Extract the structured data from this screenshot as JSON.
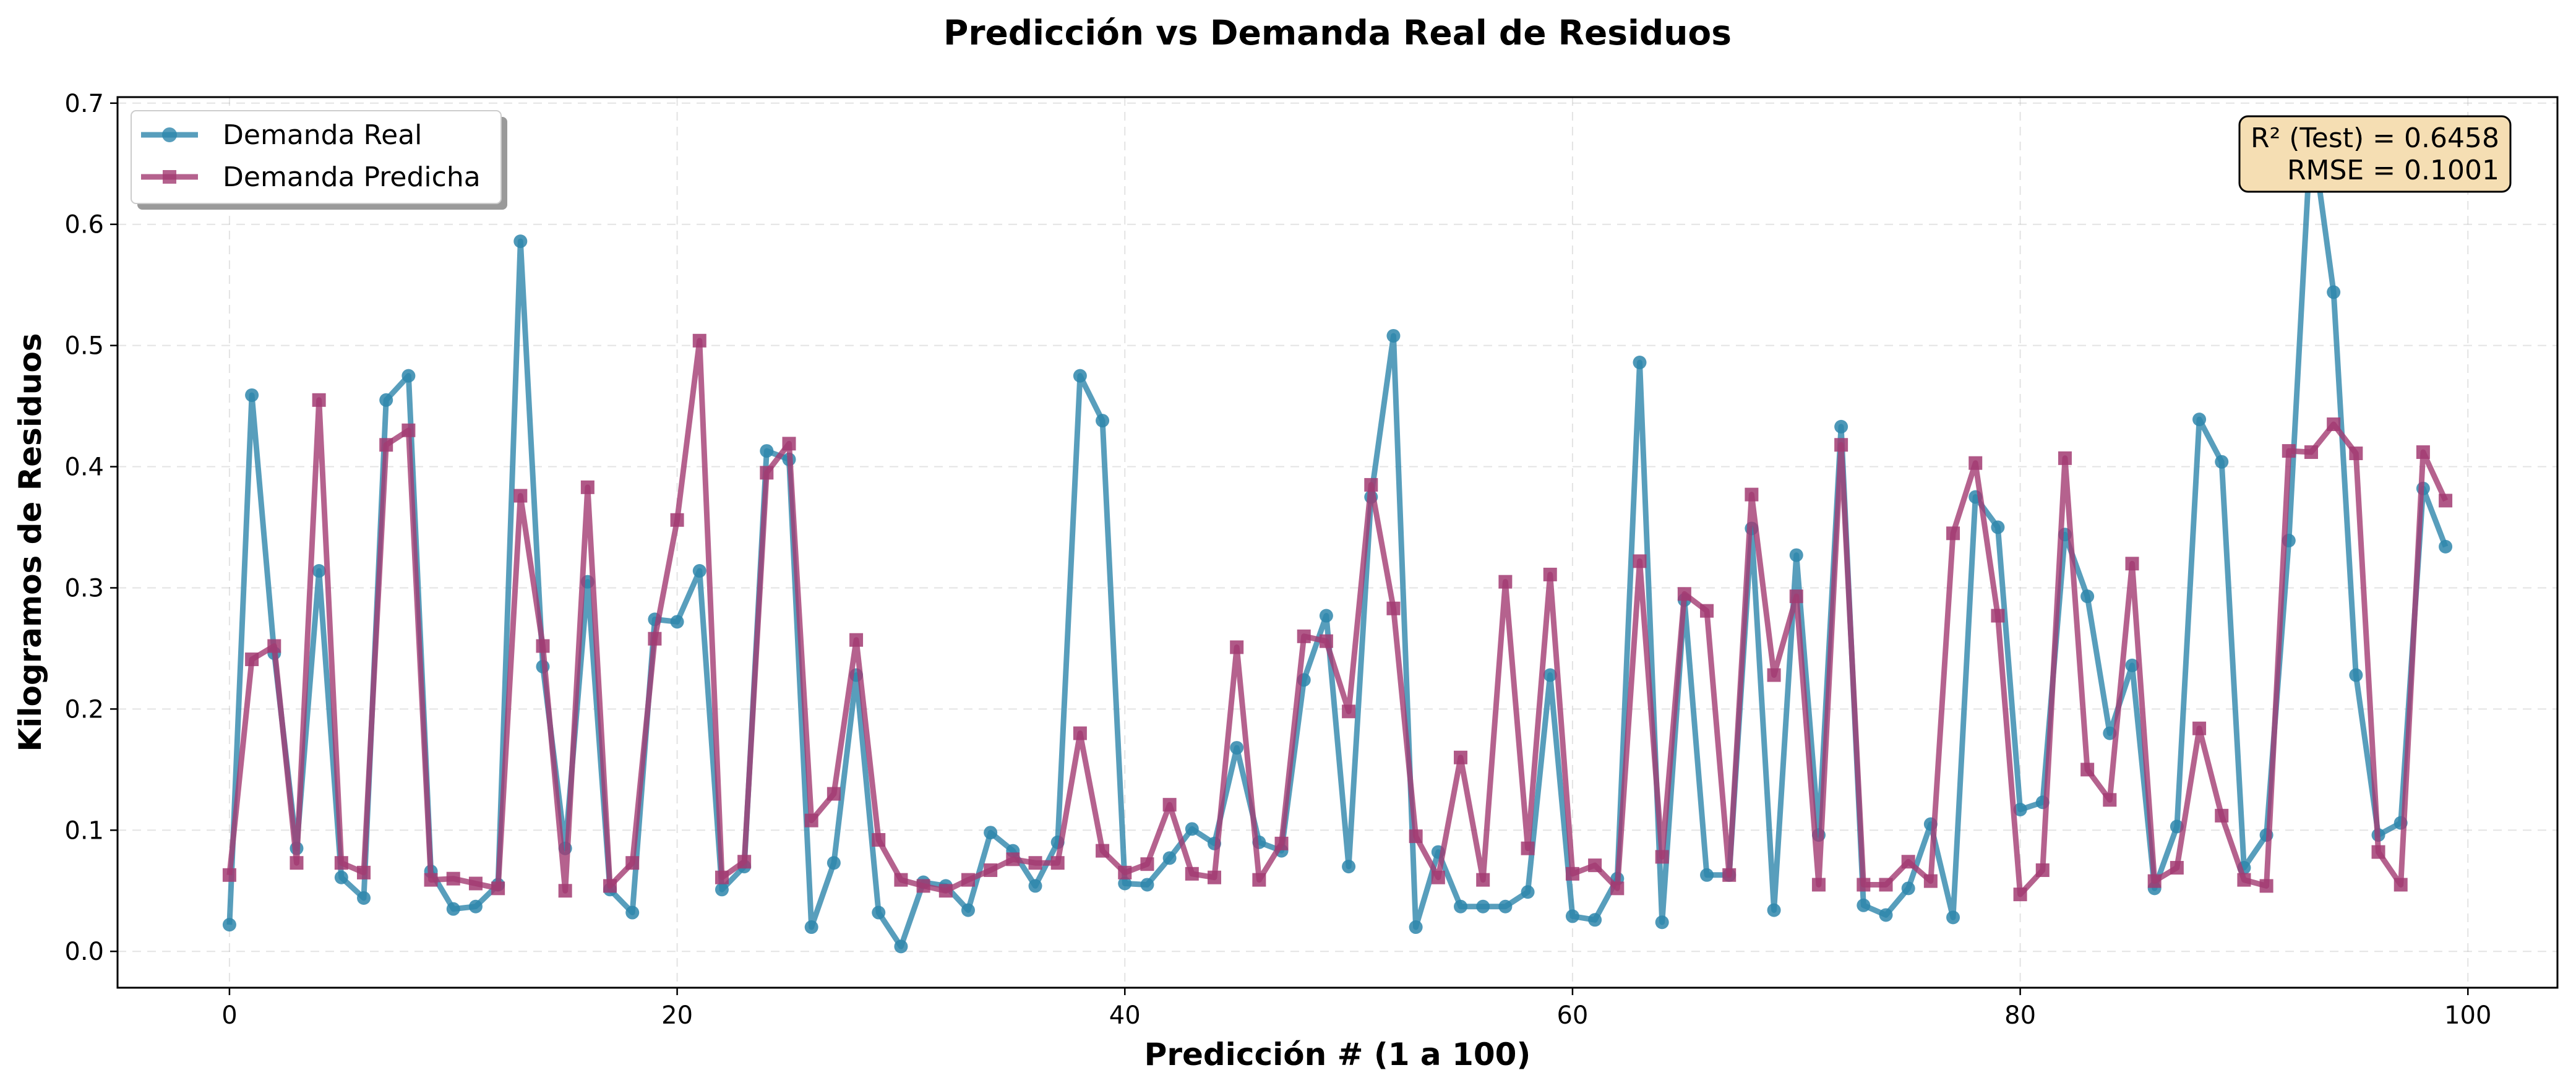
{
  "chart_data": {
    "type": "line",
    "title": "Predicción vs Demanda Real de Residuos",
    "xlabel": "Predicción # (1 a 100)",
    "ylabel": "Kilogramos de Residuos",
    "xlim": [
      -5,
      104
    ],
    "ylim": [
      -0.03,
      0.705
    ],
    "xticks": [
      0,
      20,
      40,
      60,
      80,
      100
    ],
    "yticks": [
      0.0,
      0.1,
      0.2,
      0.3,
      0.4,
      0.5,
      0.6,
      0.7
    ],
    "xtick_labels": [
      "0",
      "20",
      "40",
      "60",
      "80",
      "100"
    ],
    "ytick_labels": [
      "0.0",
      "0.1",
      "0.2",
      "0.3",
      "0.4",
      "0.5",
      "0.6",
      "0.7"
    ],
    "grid": true,
    "legend_position": "upper-left",
    "x": [
      0,
      1,
      2,
      3,
      4,
      5,
      6,
      7,
      8,
      9,
      10,
      11,
      12,
      13,
      14,
      15,
      16,
      17,
      18,
      19,
      20,
      21,
      22,
      23,
      24,
      25,
      26,
      27,
      28,
      29,
      30,
      31,
      32,
      33,
      34,
      35,
      36,
      37,
      38,
      39,
      40,
      41,
      42,
      43,
      44,
      45,
      46,
      47,
      48,
      49,
      50,
      51,
      52,
      53,
      54,
      55,
      56,
      57,
      58,
      59,
      60,
      61,
      62,
      63,
      64,
      65,
      66,
      67,
      68,
      69,
      70,
      71,
      72,
      73,
      74,
      75,
      76,
      77,
      78,
      79,
      80,
      81,
      82,
      83,
      84,
      85,
      86,
      87,
      88,
      89,
      90,
      91,
      92,
      93,
      94,
      95,
      96,
      97,
      98,
      99
    ],
    "series": [
      {
        "name": "Demanda Real",
        "color": "#2E86AB",
        "marker": "circle",
        "values": [
          0.022,
          0.459,
          0.246,
          0.085,
          0.314,
          0.061,
          0.044,
          0.455,
          0.475,
          0.066,
          0.035,
          0.037,
          0.055,
          0.586,
          0.235,
          0.085,
          0.305,
          0.051,
          0.032,
          0.274,
          0.272,
          0.314,
          0.051,
          0.07,
          0.413,
          0.406,
          0.02,
          0.073,
          0.228,
          0.032,
          0.004,
          0.057,
          0.054,
          0.034,
          0.098,
          0.083,
          0.054,
          0.09,
          0.475,
          0.438,
          0.056,
          0.055,
          0.077,
          0.101,
          0.089,
          0.168,
          0.09,
          0.083,
          0.224,
          0.277,
          0.07,
          0.375,
          0.508,
          0.02,
          0.082,
          0.037,
          0.037,
          0.037,
          0.049,
          0.228,
          0.029,
          0.026,
          0.06,
          0.486,
          0.024,
          0.29,
          0.063,
          0.063,
          0.349,
          0.034,
          0.327,
          0.096,
          0.433,
          0.038,
          0.03,
          0.052,
          0.105,
          0.028,
          0.375,
          0.35,
          0.117,
          0.123,
          0.344,
          0.293,
          0.18,
          0.236,
          0.052,
          0.103,
          0.439,
          0.404,
          0.069,
          0.096,
          0.339,
          0.68,
          0.544,
          0.228,
          0.096,
          0.106,
          0.382,
          0.334
        ]
      },
      {
        "name": "Demanda Predicha",
        "color": "#A23B72",
        "marker": "square",
        "values": [
          0.063,
          0.241,
          0.252,
          0.073,
          0.455,
          0.073,
          0.065,
          0.418,
          0.43,
          0.059,
          0.06,
          0.056,
          0.052,
          0.376,
          0.252,
          0.05,
          0.383,
          0.054,
          0.073,
          0.258,
          0.356,
          0.504,
          0.061,
          0.074,
          0.395,
          0.419,
          0.108,
          0.13,
          0.257,
          0.092,
          0.059,
          0.054,
          0.05,
          0.059,
          0.067,
          0.076,
          0.073,
          0.073,
          0.18,
          0.083,
          0.065,
          0.072,
          0.121,
          0.064,
          0.061,
          0.251,
          0.059,
          0.089,
          0.26,
          0.256,
          0.198,
          0.385,
          0.283,
          0.095,
          0.061,
          0.16,
          0.059,
          0.305,
          0.085,
          0.311,
          0.064,
          0.071,
          0.052,
          0.322,
          0.078,
          0.295,
          0.281,
          0.063,
          0.377,
          0.228,
          0.293,
          0.055,
          0.418,
          0.055,
          0.055,
          0.074,
          0.058,
          0.345,
          0.403,
          0.277,
          0.047,
          0.067,
          0.407,
          0.15,
          0.125,
          0.32,
          0.058,
          0.069,
          0.184,
          0.112,
          0.059,
          0.054,
          0.413,
          0.412,
          0.435,
          0.411,
          0.082,
          0.055,
          0.412,
          0.372
        ]
      }
    ],
    "annotation": {
      "line1": "R² (Test) = 0.6458",
      "line2": "RMSE = 0.1001",
      "position": "upper-right",
      "background": "#F5DEB3"
    }
  }
}
